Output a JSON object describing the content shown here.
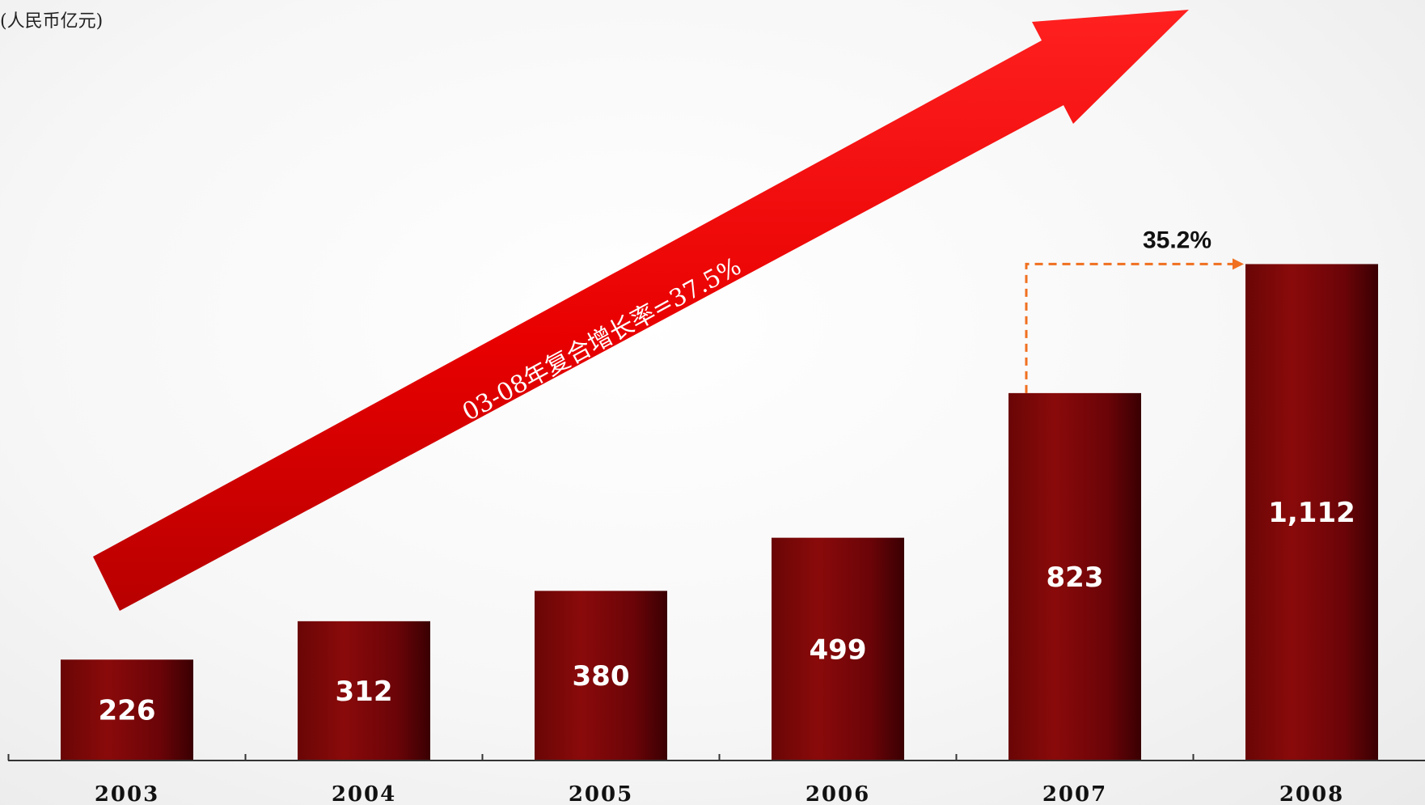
{
  "unit_label": "(人民币亿元)",
  "chart_data": {
    "type": "bar",
    "categories": [
      "2003",
      "2004",
      "2005",
      "2006",
      "2007",
      "2008"
    ],
    "values": [
      226,
      312,
      380,
      499,
      823,
      1112
    ],
    "value_labels": [
      "226",
      "312",
      "380",
      "499",
      "823",
      "1,112"
    ],
    "ylim": [
      0,
      1120
    ],
    "annotations": {
      "cagr_arrow_text": "03-08年复合增长率=37.5%",
      "yoy_growth": "35.2%"
    }
  },
  "colors": {
    "bar_light": "#8a0a0a",
    "bar_dark": "#3a0002",
    "arrow": "#ee0000",
    "growth_connector": "#f07020",
    "axis": "#333333"
  }
}
